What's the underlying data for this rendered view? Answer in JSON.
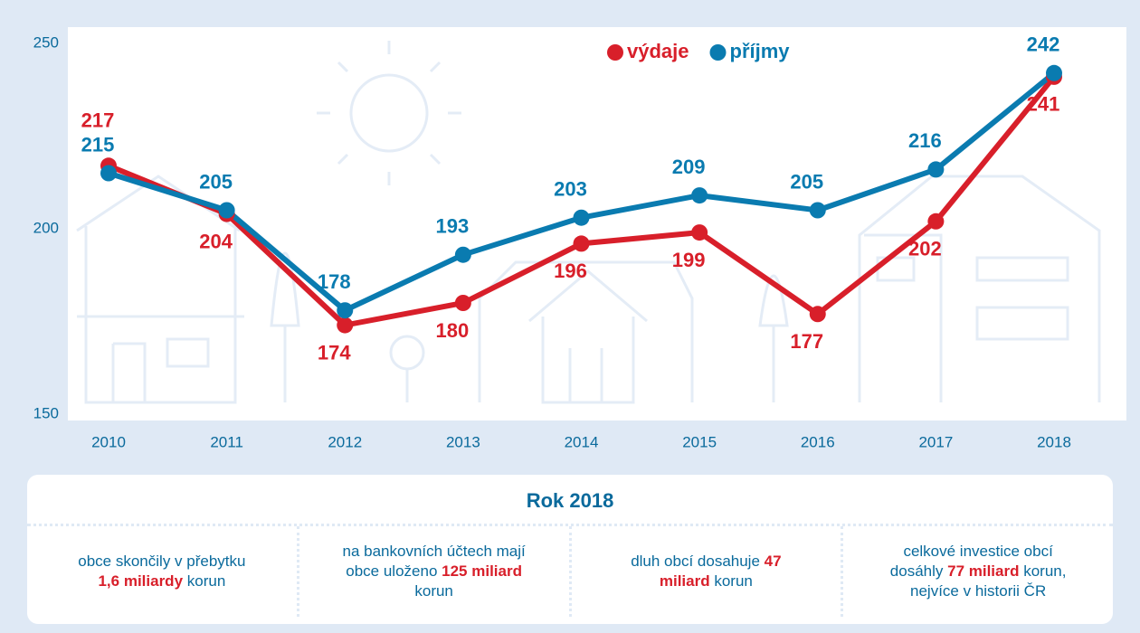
{
  "chart_data": {
    "type": "line",
    "categories": [
      "2010",
      "2011",
      "2012",
      "2013",
      "2014",
      "2015",
      "2016",
      "2017",
      "2018"
    ],
    "series": [
      {
        "name": "výdaje",
        "color": "#d81f2a",
        "values": [
          217,
          204,
          174,
          180,
          196,
          199,
          177,
          202,
          241
        ]
      },
      {
        "name": "příjmy",
        "color": "#0a7bb0",
        "values": [
          215,
          205,
          178,
          193,
          203,
          209,
          205,
          216,
          242
        ]
      }
    ],
    "ylim": [
      150,
      250
    ],
    "yticks": [
      150,
      200,
      250
    ]
  },
  "info": {
    "title": "Rok 2018",
    "items": [
      {
        "before": "obce skončily v přebytku ",
        "highlight": "1,6 miliardy",
        "after": " korun"
      },
      {
        "before": "na bankovních účtech mají obce uloženo ",
        "highlight": "125 miliard",
        "after": " korun"
      },
      {
        "before": "dluh obcí dosahuje ",
        "highlight": "47 miliard",
        "after": " korun"
      },
      {
        "before": "celkové investice obcí dosáhly ",
        "highlight": "77 miliard",
        "after": " korun, nejvíce v historii ČR"
      }
    ]
  }
}
